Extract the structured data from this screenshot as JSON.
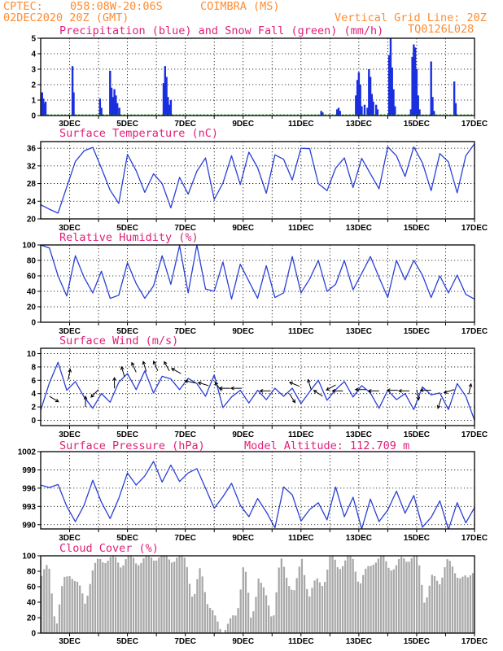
{
  "header": {
    "center_label": "CPTEC:",
    "coords": "058:08W-20:06S",
    "station": "COIMBRA (MS)",
    "run": "02DEC2020 20Z (GMT)",
    "grid_note": "Vertical Grid Line: 20Z",
    "model": "TQ0126L028"
  },
  "x_ticks": [
    "3DEC",
    "5DEC",
    "7DEC",
    "9DEC",
    "11DEC",
    "13DEC",
    "15DEC",
    "17DEC"
  ],
  "colors": {
    "header": "#ff8c33",
    "title": "#e0207a",
    "precip": "#1a2fe0",
    "snow": "#1fa01f",
    "line": "#2a3fd6",
    "cloud": "#a8a8a8"
  },
  "chart_data": [
    {
      "id": "precip",
      "type": "bar",
      "title": "Precipitation (blue) and Snow Fall (green) (mm/h)",
      "ylim": [
        0,
        5
      ],
      "yticks": [
        0,
        1,
        2,
        3,
        4,
        5
      ],
      "grid": true,
      "series": [
        {
          "name": "Precipitation",
          "color": "#1a2fe0",
          "points": [
            [
              2.05,
              1.5
            ],
            [
              2.09,
              1.1
            ],
            [
              2.13,
              0.8
            ],
            [
              2.17,
              0.9
            ],
            [
              3.1,
              3.2
            ],
            [
              3.14,
              1.5
            ],
            [
              4.05,
              1.1
            ],
            [
              4.1,
              0.5
            ],
            [
              4.4,
              2.9
            ],
            [
              4.45,
              1.8
            ],
            [
              4.5,
              1.2
            ],
            [
              4.55,
              1.7
            ],
            [
              4.6,
              1.3
            ],
            [
              4.65,
              0.8
            ],
            [
              4.72,
              0.5
            ],
            [
              6.25,
              2.1
            ],
            [
              6.3,
              3.2
            ],
            [
              6.35,
              2.5
            ],
            [
              6.4,
              1.2
            ],
            [
              6.45,
              0.7
            ],
            [
              6.5,
              1.0
            ],
            [
              11.7,
              0.3
            ],
            [
              11.75,
              0.2
            ],
            [
              12.25,
              0.4
            ],
            [
              12.3,
              0.5
            ],
            [
              12.35,
              0.3
            ],
            [
              12.9,
              1.3
            ],
            [
              12.95,
              2.3
            ],
            [
              13.0,
              2.8
            ],
            [
              13.05,
              2.0
            ],
            [
              13.1,
              0.6
            ],
            [
              13.2,
              0.7
            ],
            [
              13.3,
              0.5
            ],
            [
              13.35,
              0.4
            ],
            [
              13.35,
              3.0
            ],
            [
              13.4,
              2.5
            ],
            [
              13.45,
              1.4
            ],
            [
              13.5,
              0.9
            ],
            [
              13.6,
              0.7
            ],
            [
              13.65,
              0.4
            ],
            [
              14.05,
              3.9
            ],
            [
              14.1,
              5.0
            ],
            [
              14.15,
              3.1
            ],
            [
              14.2,
              1.7
            ],
            [
              14.25,
              0.6
            ],
            [
              14.8,
              0.4
            ],
            [
              14.85,
              3.8
            ],
            [
              14.9,
              4.6
            ],
            [
              14.95,
              4.4
            ],
            [
              15.0,
              3.0
            ],
            [
              15.05,
              1.3
            ],
            [
              15.1,
              0.4
            ],
            [
              15.5,
              3.5
            ],
            [
              15.55,
              1.2
            ],
            [
              15.6,
              0.3
            ],
            [
              16.3,
              2.2
            ],
            [
              16.35,
              0.8
            ]
          ]
        },
        {
          "name": "Snow Fall",
          "color": "#1fa01f",
          "points": []
        }
      ]
    },
    {
      "id": "temperature",
      "type": "line",
      "title": "Surface Temperature (nC)",
      "ylim": [
        20,
        37.5
      ],
      "yticks": [
        20,
        24,
        28,
        32,
        36
      ],
      "grid": true,
      "x": [
        2.0,
        2.3,
        2.6,
        2.9,
        3.2,
        3.5,
        3.8,
        4.1,
        4.4,
        4.7,
        5.0,
        5.3,
        5.6,
        5.9,
        6.2,
        6.5,
        6.8,
        7.1,
        7.4,
        7.7,
        8.0,
        8.3,
        8.6,
        8.9,
        9.2,
        9.5,
        9.8,
        10.1,
        10.4,
        10.7,
        11.0,
        11.3,
        11.6,
        11.9,
        12.2,
        12.5,
        12.8,
        13.1,
        13.4,
        13.7,
        14.0,
        14.3,
        14.6,
        14.9,
        15.2,
        15.5,
        15.8,
        16.1,
        16.4,
        16.7,
        17.0
      ],
      "y": [
        23.2,
        22.2,
        21.3,
        27.2,
        33.0,
        35.4,
        36.2,
        31.5,
        26.5,
        23.5,
        34.6,
        30.9,
        26.0,
        30.2,
        28.0,
        22.5,
        29.4,
        25.6,
        30.8,
        33.8,
        24.4,
        28.1,
        34.3,
        27.8,
        35.1,
        31.6,
        25.8,
        34.5,
        33.5,
        28.8,
        36.0,
        35.9,
        28.0,
        26.4,
        31.5,
        33.8,
        27.1,
        33.7,
        30.2,
        26.8,
        36.3,
        34.3,
        29.6,
        36.3,
        32.7,
        26.4,
        34.8,
        32.9,
        25.9,
        34.3,
        37.0
      ]
    },
    {
      "id": "humidity",
      "type": "line",
      "title": "Relative Humidity (%)",
      "ylim": [
        0,
        100
      ],
      "yticks": [
        0,
        20,
        40,
        60,
        80,
        100
      ],
      "grid": true,
      "x": [
        2.0,
        2.3,
        2.6,
        2.9,
        3.2,
        3.5,
        3.8,
        4.1,
        4.4,
        4.7,
        5.0,
        5.3,
        5.6,
        5.9,
        6.2,
        6.5,
        6.8,
        7.1,
        7.4,
        7.7,
        8.0,
        8.3,
        8.6,
        8.9,
        9.2,
        9.5,
        9.8,
        10.1,
        10.4,
        10.7,
        11.0,
        11.3,
        11.6,
        11.9,
        12.2,
        12.5,
        12.8,
        13.1,
        13.4,
        13.7,
        14.0,
        14.3,
        14.6,
        14.9,
        15.2,
        15.5,
        15.8,
        16.1,
        16.4,
        16.7,
        17.0
      ],
      "y": [
        100,
        96,
        60,
        34,
        86,
        58,
        38,
        66,
        31,
        35,
        77,
        50,
        31,
        47,
        86,
        49,
        99,
        38,
        100,
        43,
        40,
        78,
        30,
        75,
        53,
        31,
        73,
        32,
        38,
        85,
        38,
        56,
        80,
        40,
        49,
        80,
        42,
        63,
        85,
        58,
        32,
        80,
        55,
        80,
        61,
        32,
        60,
        38,
        61,
        36,
        30
      ]
    },
    {
      "id": "wind",
      "type": "line",
      "title": "Surface Wind (m/s)",
      "ylim": [
        -0.8,
        10.8
      ],
      "yticks": [
        0,
        2,
        4,
        6,
        8,
        10
      ],
      "grid": true,
      "x": [
        2.0,
        2.3,
        2.6,
        2.9,
        3.2,
        3.5,
        3.8,
        4.1,
        4.4,
        4.7,
        5.0,
        5.3,
        5.6,
        5.9,
        6.2,
        6.5,
        6.8,
        7.1,
        7.4,
        7.7,
        8.0,
        8.3,
        8.6,
        8.9,
        9.2,
        9.5,
        9.8,
        10.1,
        10.4,
        10.7,
        11.0,
        11.3,
        11.6,
        11.9,
        12.2,
        12.5,
        12.8,
        13.1,
        13.4,
        13.7,
        14.0,
        14.3,
        14.6,
        14.9,
        15.2,
        15.5,
        15.8,
        16.1,
        16.4,
        16.7,
        17.0
      ],
      "y": [
        1.5,
        5.6,
        8.7,
        4.5,
        5.8,
        3.5,
        1.8,
        4.0,
        2.7,
        5.7,
        7.0,
        4.6,
        7.4,
        4.1,
        6.6,
        6.2,
        4.6,
        6.3,
        5.5,
        3.6,
        6.8,
        1.9,
        3.5,
        4.5,
        2.6,
        4.5,
        3.1,
        4.8,
        3.6,
        4.8,
        2.5,
        4.3,
        6.0,
        3.0,
        4.6,
        5.8,
        3.5,
        5.2,
        4.1,
        1.8,
        4.5,
        3.1,
        4.0,
        1.6,
        5.0,
        3.8,
        4.1,
        1.6,
        5.5,
        3.6,
        0.0
      ],
      "vectors": [
        [
          2.3,
          3.6,
          0.5,
          -0.3
        ],
        [
          2.95,
          6.1,
          0.2,
          1.0
        ],
        [
          3.55,
          2.0,
          0.0,
          1.0
        ],
        [
          4.0,
          4.6,
          -0.7,
          -0.7
        ],
        [
          4.55,
          4.8,
          0.0,
          1.0
        ],
        [
          4.9,
          6.5,
          -0.3,
          1.0
        ],
        [
          5.3,
          7.2,
          -0.4,
          0.9
        ],
        [
          5.65,
          7.3,
          -0.3,
          1.0
        ],
        [
          6.05,
          7.4,
          -0.4,
          0.9
        ],
        [
          6.45,
          7.4,
          -0.5,
          0.9
        ],
        [
          6.85,
          7.0,
          -0.9,
          0.5
        ],
        [
          7.35,
          5.6,
          -1.0,
          0.2
        ],
        [
          7.8,
          5.2,
          -1.0,
          0.3
        ],
        [
          8.25,
          4.4,
          -0.6,
          0.8
        ],
        [
          8.55,
          4.8,
          -1.0,
          0.0
        ],
        [
          8.95,
          4.8,
          -1.0,
          0.0
        ],
        [
          9.95,
          4.4,
          -1.0,
          0.0
        ],
        [
          10.6,
          4.0,
          0.5,
          -0.8
        ],
        [
          10.95,
          5.1,
          -1.0,
          0.4
        ],
        [
          11.35,
          4.6,
          -0.3,
          1.0
        ],
        [
          11.75,
          3.6,
          -0.9,
          0.6
        ],
        [
          12.2,
          5.3,
          -0.9,
          -0.5
        ],
        [
          12.45,
          4.4,
          -1.0,
          0.0
        ],
        [
          13.25,
          4.6,
          -1.0,
          0.0
        ],
        [
          13.7,
          4.4,
          -1.0,
          0.0
        ],
        [
          14.35,
          4.5,
          -1.0,
          0.0
        ],
        [
          14.75,
          4.4,
          -1.0,
          0.0
        ],
        [
          15.0,
          4.6,
          0.2,
          -1.0
        ],
        [
          15.5,
          4.5,
          -1.0,
          0.0
        ],
        [
          15.85,
          3.3,
          -0.3,
          -0.9
        ],
        [
          16.3,
          4.6,
          -1.0,
          -0.3
        ],
        [
          16.8,
          3.9,
          0.2,
          0.9
        ]
      ]
    },
    {
      "id": "pressure",
      "type": "line",
      "title": "Surface Pressure (hPa)",
      "annotation": "Model Altitude: 112.709 m",
      "ylim": [
        989.3,
        1002.0
      ],
      "yticks": [
        990,
        993,
        996,
        999,
        1002
      ],
      "grid": true,
      "x": [
        2.0,
        2.3,
        2.6,
        2.9,
        3.2,
        3.5,
        3.8,
        4.1,
        4.4,
        4.7,
        5.0,
        5.3,
        5.6,
        5.9,
        6.2,
        6.5,
        6.8,
        7.1,
        7.4,
        7.7,
        8.0,
        8.3,
        8.6,
        8.9,
        9.2,
        9.5,
        9.8,
        10.1,
        10.4,
        10.7,
        11.0,
        11.3,
        11.6,
        11.9,
        12.2,
        12.5,
        12.8,
        13.1,
        13.4,
        13.7,
        14.0,
        14.3,
        14.6,
        14.9,
        15.2,
        15.5,
        15.8,
        16.1,
        16.4,
        16.7,
        17.0
      ],
      "y": [
        996.5,
        996.1,
        996.6,
        993.0,
        990.5,
        993.2,
        997.3,
        993.7,
        991.0,
        994.3,
        998.5,
        996.5,
        998.0,
        1000.4,
        997.0,
        999.8,
        997.1,
        998.5,
        999.2,
        996.0,
        992.7,
        994.6,
        996.8,
        993.2,
        991.3,
        994.3,
        992.1,
        989.5,
        996.2,
        994.9,
        990.6,
        992.5,
        993.6,
        990.8,
        996.2,
        991.3,
        994.5,
        989.3,
        994.2,
        990.5,
        992.4,
        995.5,
        991.9,
        994.8,
        989.6,
        991.2,
        993.9,
        989.2,
        993.6,
        990.3,
        992.8
      ]
    },
    {
      "id": "cloud",
      "type": "area",
      "title": "Cloud Cover (%)",
      "ylim": [
        0,
        100
      ],
      "yticks": [
        0,
        20,
        40,
        60,
        80,
        100
      ],
      "grid": false,
      "x": [
        2.0,
        2.25,
        2.5,
        2.75,
        3.0,
        3.25,
        3.5,
        3.75,
        4.0,
        4.25,
        4.5,
        4.75,
        5.0,
        5.25,
        5.5,
        5.75,
        6.0,
        6.25,
        6.5,
        6.75,
        7.0,
        7.25,
        7.5,
        7.75,
        8.0,
        8.25,
        8.5,
        8.75,
        9.0,
        9.25,
        9.5,
        9.75,
        10.0,
        10.25,
        10.5,
        10.75,
        11.0,
        11.25,
        11.5,
        11.75,
        12.0,
        12.25,
        12.5,
        12.75,
        13.0,
        13.25,
        13.5,
        13.75,
        14.0,
        14.25,
        14.5,
        14.75,
        15.0,
        15.25,
        15.5,
        15.75,
        16.0,
        16.25,
        16.5,
        16.75,
        17.0
      ],
      "y": [
        75,
        85,
        10,
        65,
        80,
        62,
        40,
        80,
        94,
        97,
        95,
        90,
        100,
        93,
        95,
        97,
        100,
        98,
        97,
        97,
        96,
        40,
        85,
        40,
        17,
        5,
        12,
        25,
        95,
        12,
        75,
        45,
        20,
        95,
        70,
        55,
        94,
        50,
        66,
        66,
        99,
        87,
        93,
        97,
        65,
        80,
        96,
        97,
        88,
        85,
        97,
        98,
        98,
        42,
        70,
        66,
        94,
        80,
        75,
        66,
        90
      ]
    }
  ]
}
